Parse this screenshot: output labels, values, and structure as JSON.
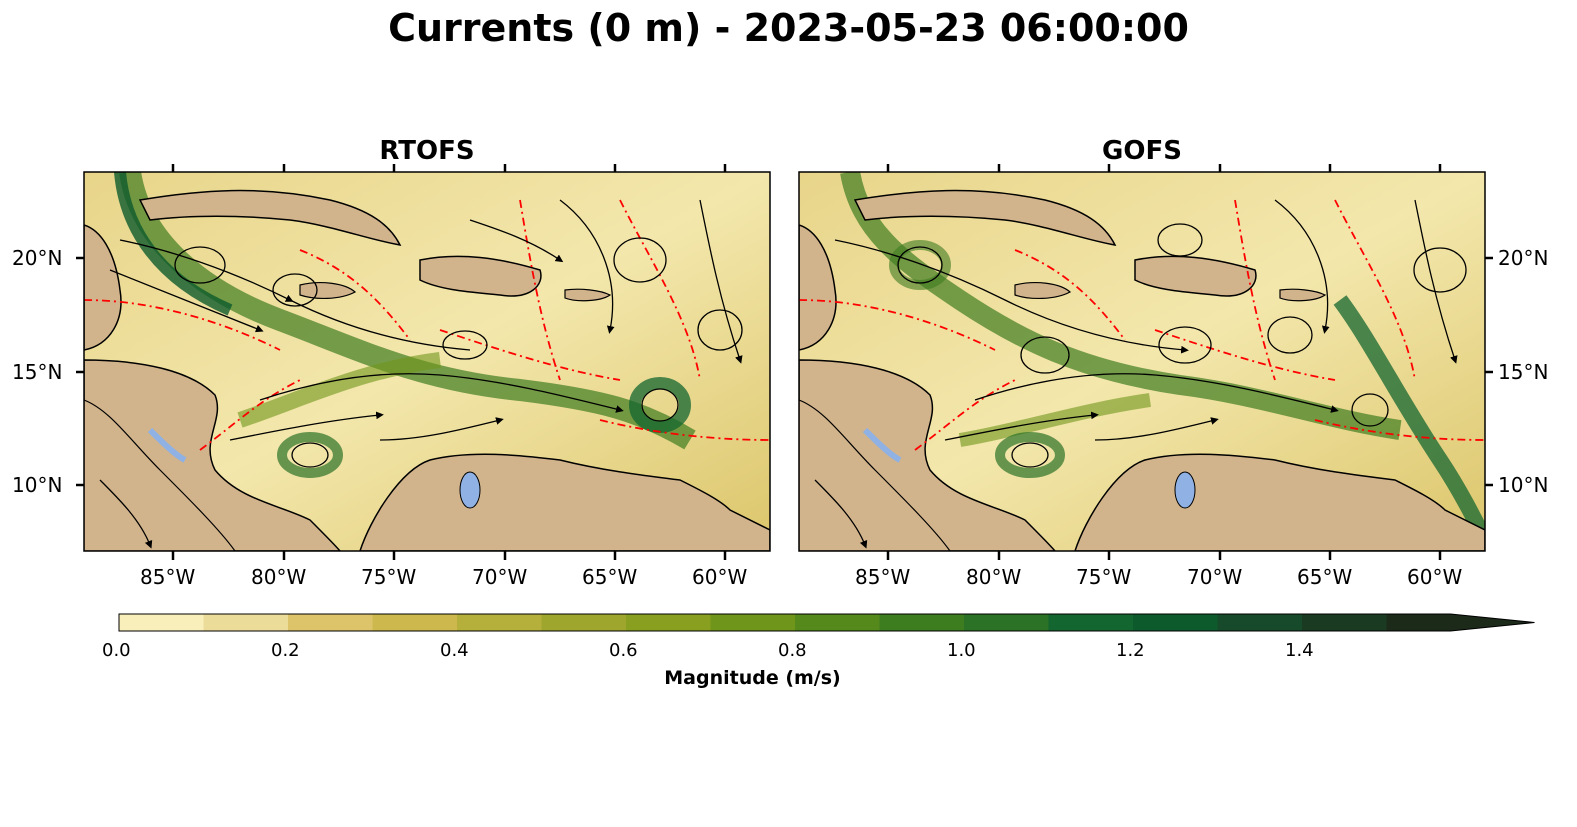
{
  "title": "Currents (0 m) - 2023-05-23 06:00:00",
  "panels": [
    {
      "title": "RTOFS"
    },
    {
      "title": "GOFS"
    }
  ],
  "axes": {
    "lon_ticks": [
      "85°W",
      "80°W",
      "75°W",
      "70°W",
      "65°W",
      "60°W"
    ],
    "lat_ticks": [
      "20°N",
      "15°N",
      "10°N"
    ]
  },
  "colorbar": {
    "label": "Magnitude (m/s)",
    "tick_labels": [
      "0.0",
      "0.2",
      "0.4",
      "0.6",
      "0.8",
      "1.0",
      "1.2",
      "1.4"
    ],
    "colors": [
      "#f8efbb",
      "#ecdc9a",
      "#ddc46a",
      "#cdb84d",
      "#b5b03b",
      "#9fa62d",
      "#889f1f",
      "#6f961a",
      "#55891c",
      "#3e7c20",
      "#2b7226",
      "#13662f",
      "#0d5a2c",
      "#164a2a",
      "#1b3a22",
      "#1c2a1a"
    ]
  },
  "colors": {
    "land": "#d2b48c",
    "lake": "#8fb1e3",
    "eez_line": "#ff0000",
    "streamline": "#000000"
  }
}
